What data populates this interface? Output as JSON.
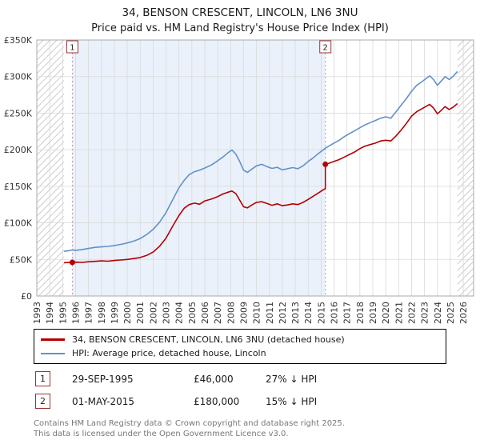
{
  "chart_data": {
    "type": "line",
    "title": "34, BENSON CRESCENT, LINCOLN, LN6 3NU",
    "subtitle": "Price paid vs. HM Land Registry's House Price Index (HPI)",
    "x_range": [
      1993,
      2026.8
    ],
    "y_range": [
      0,
      350000
    ],
    "x_ticks": [
      1993,
      1994,
      1995,
      1996,
      1997,
      1998,
      1999,
      2000,
      2001,
      2002,
      2003,
      2004,
      2005,
      2006,
      2007,
      2008,
      2009,
      2010,
      2011,
      2012,
      2013,
      2014,
      2015,
      2016,
      2017,
      2018,
      2019,
      2020,
      2021,
      2022,
      2023,
      2024,
      2025,
      2026
    ],
    "y_ticks": [
      {
        "v": 0,
        "label": "£0"
      },
      {
        "v": 50000,
        "label": "£50K"
      },
      {
        "v": 100000,
        "label": "£100K"
      },
      {
        "v": 150000,
        "label": "£150K"
      },
      {
        "v": 200000,
        "label": "£200K"
      },
      {
        "v": 250000,
        "label": "£250K"
      },
      {
        "v": 300000,
        "label": "£300K"
      },
      {
        "v": 350000,
        "label": "£350K"
      }
    ],
    "shade_region": [
      1995.75,
      2015.33
    ],
    "hatch_regions": [
      [
        1993,
        1995.1
      ],
      [
        2025.55,
        2026.8
      ]
    ],
    "colors": {
      "shade": "#eaf1fb",
      "grid": "#d9d9d9",
      "frame": "#aaaaaa",
      "sale_line": "#e08888",
      "sale_box": "#993333",
      "hatch": "#cccccc"
    },
    "series": [
      {
        "name": "34, BENSON CRESCENT, LINCOLN, LN6 3NU (detached house)",
        "color": "#b30000",
        "points": [
          [
            1995.1,
            45500
          ],
          [
            1995.4,
            45800
          ],
          [
            1995.75,
            46000
          ],
          [
            1996.1,
            46300
          ],
          [
            1996.5,
            45900
          ],
          [
            1997,
            46800
          ],
          [
            1997.5,
            47400
          ],
          [
            1998,
            48000
          ],
          [
            1998.5,
            47600
          ],
          [
            1999,
            48600
          ],
          [
            1999.5,
            49200
          ],
          [
            2000,
            50000
          ],
          [
            2000.5,
            51200
          ],
          [
            2001,
            52600
          ],
          [
            2001.5,
            55500
          ],
          [
            2002,
            60000
          ],
          [
            2002.5,
            68000
          ],
          [
            2003,
            79000
          ],
          [
            2003.5,
            95000
          ],
          [
            2004,
            110000
          ],
          [
            2004.4,
            120000
          ],
          [
            2004.8,
            125000
          ],
          [
            2005.2,
            127000
          ],
          [
            2005.6,
            125500
          ],
          [
            2006,
            130000
          ],
          [
            2006.5,
            132500
          ],
          [
            2007,
            136000
          ],
          [
            2007.4,
            139500
          ],
          [
            2007.8,
            142000
          ],
          [
            2008.1,
            143500
          ],
          [
            2008.4,
            140000
          ],
          [
            2008.7,
            131000
          ],
          [
            2009,
            122000
          ],
          [
            2009.3,
            120500
          ],
          [
            2009.6,
            124000
          ],
          [
            2010,
            128000
          ],
          [
            2010.4,
            129000
          ],
          [
            2010.8,
            126500
          ],
          [
            2011.2,
            124000
          ],
          [
            2011.6,
            126000
          ],
          [
            2012,
            123500
          ],
          [
            2012.4,
            124500
          ],
          [
            2012.8,
            126000
          ],
          [
            2013.2,
            125000
          ],
          [
            2013.6,
            128000
          ],
          [
            2014,
            132000
          ],
          [
            2014.4,
            136500
          ],
          [
            2014.8,
            141000
          ],
          [
            2015.1,
            144500
          ],
          [
            2015.33,
            147000
          ],
          [
            2015.33,
            180000
          ],
          [
            2015.6,
            181500
          ],
          [
            2016,
            184000
          ],
          [
            2016.4,
            186500
          ],
          [
            2016.8,
            190000
          ],
          [
            2017.2,
            193500
          ],
          [
            2017.6,
            197000
          ],
          [
            2018,
            201500
          ],
          [
            2018.4,
            205000
          ],
          [
            2018.8,
            207000
          ],
          [
            2019.2,
            209000
          ],
          [
            2019.6,
            212000
          ],
          [
            2020,
            213000
          ],
          [
            2020.4,
            212000
          ],
          [
            2020.8,
            219000
          ],
          [
            2021.2,
            227000
          ],
          [
            2021.6,
            236000
          ],
          [
            2022,
            246000
          ],
          [
            2022.4,
            252000
          ],
          [
            2022.8,
            256000
          ],
          [
            2023.1,
            259000
          ],
          [
            2023.4,
            262000
          ],
          [
            2023.7,
            257000
          ],
          [
            2024,
            249000
          ],
          [
            2024.3,
            254000
          ],
          [
            2024.6,
            259000
          ],
          [
            2024.9,
            255000
          ],
          [
            2025.2,
            258000
          ],
          [
            2025.55,
            263000
          ]
        ]
      },
      {
        "name": "HPI: Average price, detached house, Lincoln",
        "color": "#6291c8",
        "points": [
          [
            1995.1,
            61000
          ],
          [
            1995.5,
            62000
          ],
          [
            1995.75,
            63000
          ],
          [
            1996,
            62500
          ],
          [
            1996.5,
            63500
          ],
          [
            1997,
            65000
          ],
          [
            1997.5,
            66500
          ],
          [
            1998,
            67200
          ],
          [
            1998.5,
            67800
          ],
          [
            1999,
            69000
          ],
          [
            1999.5,
            70500
          ],
          [
            2000,
            72500
          ],
          [
            2000.5,
            75000
          ],
          [
            2001,
            78500
          ],
          [
            2001.5,
            84000
          ],
          [
            2002,
            91000
          ],
          [
            2002.5,
            101000
          ],
          [
            2003,
            114000
          ],
          [
            2003.5,
            131000
          ],
          [
            2004,
            148000
          ],
          [
            2004.4,
            158000
          ],
          [
            2004.8,
            166000
          ],
          [
            2005.2,
            170000
          ],
          [
            2005.6,
            172000
          ],
          [
            2006,
            175000
          ],
          [
            2006.5,
            179000
          ],
          [
            2007,
            185000
          ],
          [
            2007.4,
            190000
          ],
          [
            2007.8,
            196000
          ],
          [
            2008.1,
            199500
          ],
          [
            2008.4,
            194000
          ],
          [
            2008.7,
            184000
          ],
          [
            2009,
            172000
          ],
          [
            2009.3,
            169000
          ],
          [
            2009.6,
            173000
          ],
          [
            2010,
            178000
          ],
          [
            2010.4,
            180000
          ],
          [
            2010.8,
            177000
          ],
          [
            2011.2,
            174500
          ],
          [
            2011.6,
            176000
          ],
          [
            2012,
            172500
          ],
          [
            2012.4,
            174000
          ],
          [
            2012.8,
            175500
          ],
          [
            2013.2,
            174000
          ],
          [
            2013.6,
            178000
          ],
          [
            2014,
            184000
          ],
          [
            2014.4,
            189000
          ],
          [
            2014.8,
            195000
          ],
          [
            2015.1,
            199000
          ],
          [
            2015.33,
            202000
          ],
          [
            2015.6,
            205000
          ],
          [
            2016,
            209000
          ],
          [
            2016.4,
            213000
          ],
          [
            2016.8,
            218000
          ],
          [
            2017.2,
            222000
          ],
          [
            2017.6,
            226000
          ],
          [
            2018,
            230000
          ],
          [
            2018.4,
            234000
          ],
          [
            2018.8,
            237000
          ],
          [
            2019.2,
            240000
          ],
          [
            2019.6,
            243000
          ],
          [
            2020,
            245000
          ],
          [
            2020.4,
            243000
          ],
          [
            2020.8,
            252000
          ],
          [
            2021.2,
            261000
          ],
          [
            2021.6,
            270000
          ],
          [
            2022,
            280000
          ],
          [
            2022.4,
            288000
          ],
          [
            2022.8,
            293000
          ],
          [
            2023.1,
            297000
          ],
          [
            2023.4,
            301000
          ],
          [
            2023.7,
            296000
          ],
          [
            2024,
            288000
          ],
          [
            2024.3,
            294000
          ],
          [
            2024.6,
            300000
          ],
          [
            2024.9,
            296000
          ],
          [
            2025.2,
            300000
          ],
          [
            2025.55,
            307000
          ]
        ]
      }
    ],
    "sales": [
      {
        "label": "1",
        "x": 1995.75,
        "y": 46000
      },
      {
        "label": "2",
        "x": 2015.33,
        "y": 180000
      }
    ]
  },
  "transactions": [
    {
      "num": "1",
      "date": "29-SEP-1995",
      "price": "£46,000",
      "hpi": "27% ↓ HPI"
    },
    {
      "num": "2",
      "date": "01-MAY-2015",
      "price": "£180,000",
      "hpi": "15% ↓ HPI"
    }
  ],
  "footer": {
    "line1": "Contains HM Land Registry data © Crown copyright and database right 2025.",
    "line2": "This data is licensed under the Open Government Licence v3.0."
  }
}
